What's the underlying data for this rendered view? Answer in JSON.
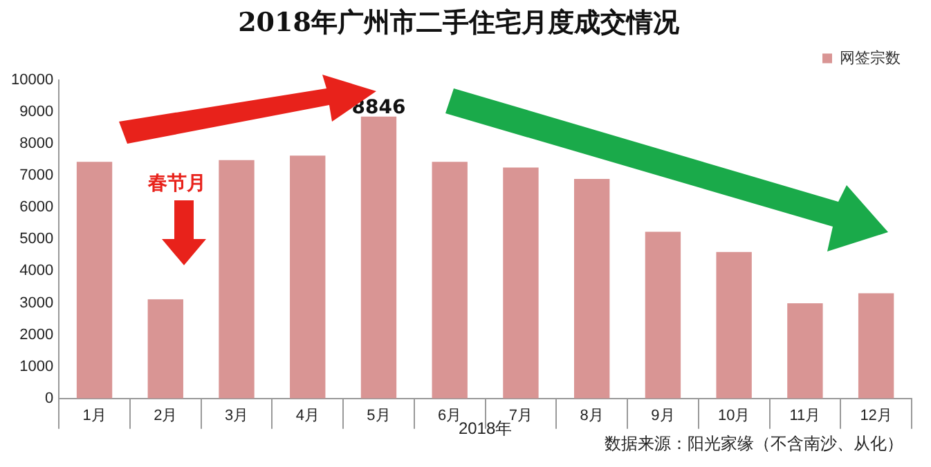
{
  "chart_data": {
    "type": "bar",
    "title": "2018年广州市二手住宅月度成交情况",
    "xlabel": "2018年",
    "categories": [
      "1月",
      "2月",
      "3月",
      "4月",
      "5月",
      "6月",
      "7月",
      "8月",
      "9月",
      "10月",
      "11月",
      "12月"
    ],
    "series": [
      {
        "name": "网签宗数",
        "color": "#d99594",
        "values": [
          7430,
          3110,
          7480,
          7620,
          8846,
          7430,
          7250,
          6890,
          5230,
          4600,
          2990,
          3300
        ],
        "value_labels": [
          null,
          null,
          null,
          null,
          "8846",
          null,
          null,
          null,
          null,
          null,
          null,
          null
        ]
      }
    ],
    "ylim": [
      0,
      10000
    ],
    "yticks": [
      0,
      1000,
      2000,
      3000,
      4000,
      5000,
      6000,
      7000,
      8000,
      9000,
      10000
    ],
    "grid": false,
    "legend": "top right",
    "annotations": [
      "春节月",
      "数据来源：阳光家缘（不含南沙、从化）"
    ]
  }
}
